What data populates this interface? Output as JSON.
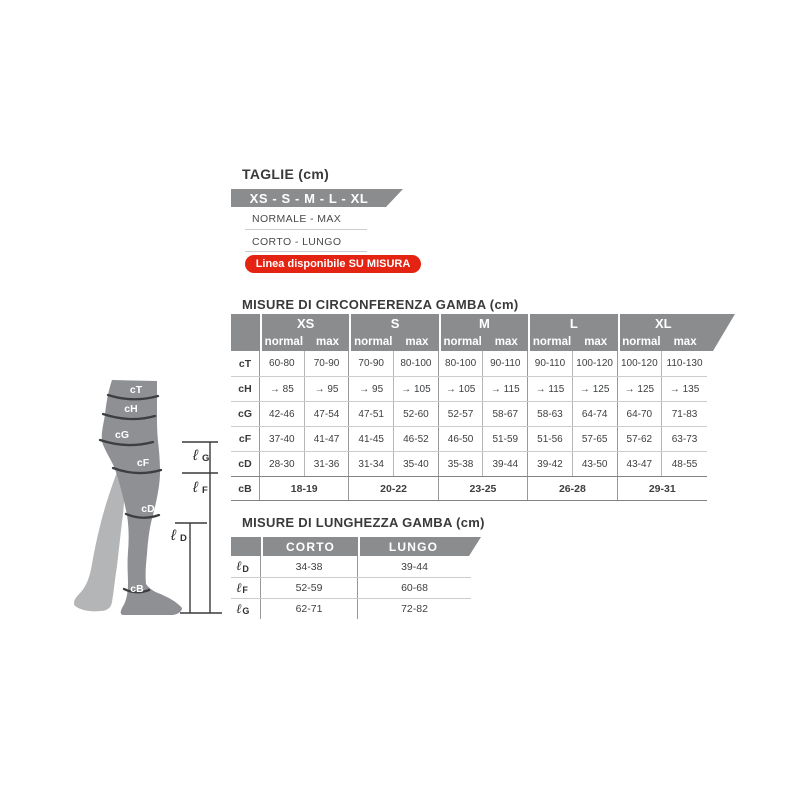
{
  "colors": {
    "text": "#3a3a3a",
    "bar": "#8a8c8e",
    "red": "#e42313",
    "leg-front": "#8e9093",
    "leg-back": "#b3b5b7",
    "band": "#3c3e40"
  },
  "taglie": {
    "title": "TAGLIE (cm)",
    "sizes_bar": "XS - S - M - L - XL",
    "row1": "NORMALE - MAX",
    "row2": "CORTO - LUNGO",
    "badge": "Linea disponibile SU MISURA"
  },
  "circumference": {
    "title": "MISURE DI CIRCONFERENZA GAMBA (cm)",
    "sizes": [
      "XS",
      "S",
      "M",
      "L",
      "XL"
    ],
    "sub_headers": [
      "normal",
      "max"
    ],
    "rows": [
      {
        "label": "cT",
        "values": [
          "60-80",
          "70-90",
          "70-90",
          "80-100",
          "80-100",
          "90-110",
          "90-110",
          "100-120",
          "100-120",
          "110-130"
        ]
      },
      {
        "label": "cH",
        "values": [
          "→ 85",
          "→ 95",
          "→ 95",
          "→ 105",
          "→ 105",
          "→ 115",
          "→ 115",
          "→ 125",
          "→ 125",
          "→ 135"
        ]
      },
      {
        "label": "cG",
        "values": [
          "42-46",
          "47-54",
          "47-51",
          "52-60",
          "52-57",
          "58-67",
          "58-63",
          "64-74",
          "64-70",
          "71-83"
        ]
      },
      {
        "label": "cF",
        "values": [
          "37-40",
          "41-47",
          "41-45",
          "46-52",
          "46-50",
          "51-59",
          "51-56",
          "57-65",
          "57-62",
          "63-73"
        ]
      },
      {
        "label": "cD",
        "values": [
          "28-30",
          "31-36",
          "31-34",
          "35-40",
          "35-38",
          "39-44",
          "39-42",
          "43-50",
          "43-47",
          "48-55"
        ]
      }
    ],
    "span_row": {
      "label": "cB",
      "values": [
        "18-19",
        "20-22",
        "23-25",
        "26-28",
        "29-31"
      ]
    }
  },
  "length": {
    "title": "MISURE DI LUNGHEZZA GAMBA (cm)",
    "headers": [
      "CORTO",
      "LUNGO"
    ],
    "rows": [
      {
        "symbol": "ℓ",
        "letter": "D",
        "values": [
          "34-38",
          "39-44"
        ]
      },
      {
        "symbol": "ℓ",
        "letter": "F",
        "values": [
          "52-59",
          "60-68"
        ]
      },
      {
        "symbol": "ℓ",
        "letter": "G",
        "values": [
          "62-71",
          "72-82"
        ]
      }
    ]
  },
  "leg": {
    "bands": [
      {
        "label": "cT"
      },
      {
        "label": "cH"
      },
      {
        "label": "cG"
      },
      {
        "label": "cF"
      },
      {
        "label": "cD"
      },
      {
        "label": "cB"
      }
    ],
    "measures": [
      {
        "symbol": "ℓ",
        "letter": "G"
      },
      {
        "symbol": "ℓ",
        "letter": "F"
      },
      {
        "symbol": "ℓ",
        "letter": "D"
      }
    ]
  }
}
